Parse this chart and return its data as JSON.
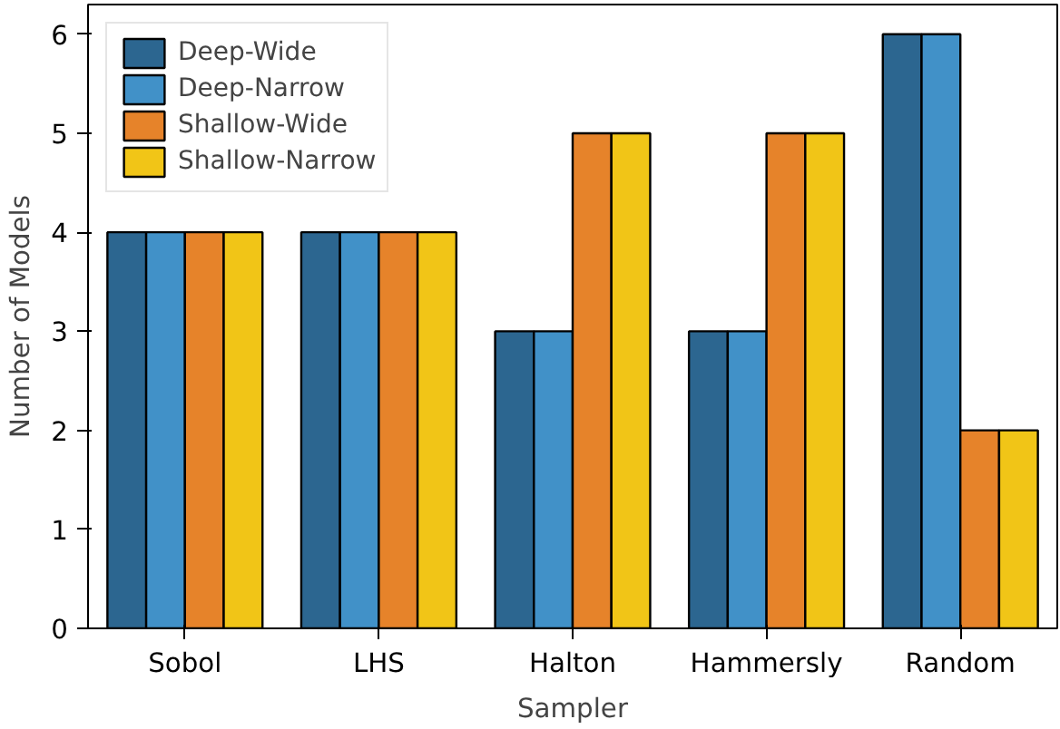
{
  "chart_data": {
    "type": "bar",
    "xlabel": "Sampler",
    "ylabel": "Number of Models",
    "categories": [
      "Sobol",
      "LHS",
      "Halton",
      "Hammersly",
      "Random"
    ],
    "series": [
      {
        "name": "Deep-Wide",
        "color": "#2c6690",
        "values": [
          4,
          4,
          3,
          3,
          6
        ]
      },
      {
        "name": "Deep-Narrow",
        "color": "#4191c8",
        "values": [
          4,
          4,
          3,
          3,
          6
        ]
      },
      {
        "name": "Shallow-Wide",
        "color": "#e6832a",
        "values": [
          4,
          4,
          5,
          5,
          2
        ]
      },
      {
        "name": "Shallow-Narrow",
        "color": "#f1c517",
        "values": [
          4,
          4,
          5,
          5,
          2
        ]
      }
    ],
    "ylim": [
      0,
      6.3
    ],
    "yticks": [
      0,
      1,
      2,
      3,
      4,
      5,
      6
    ],
    "grid": false,
    "legend": "top left"
  }
}
